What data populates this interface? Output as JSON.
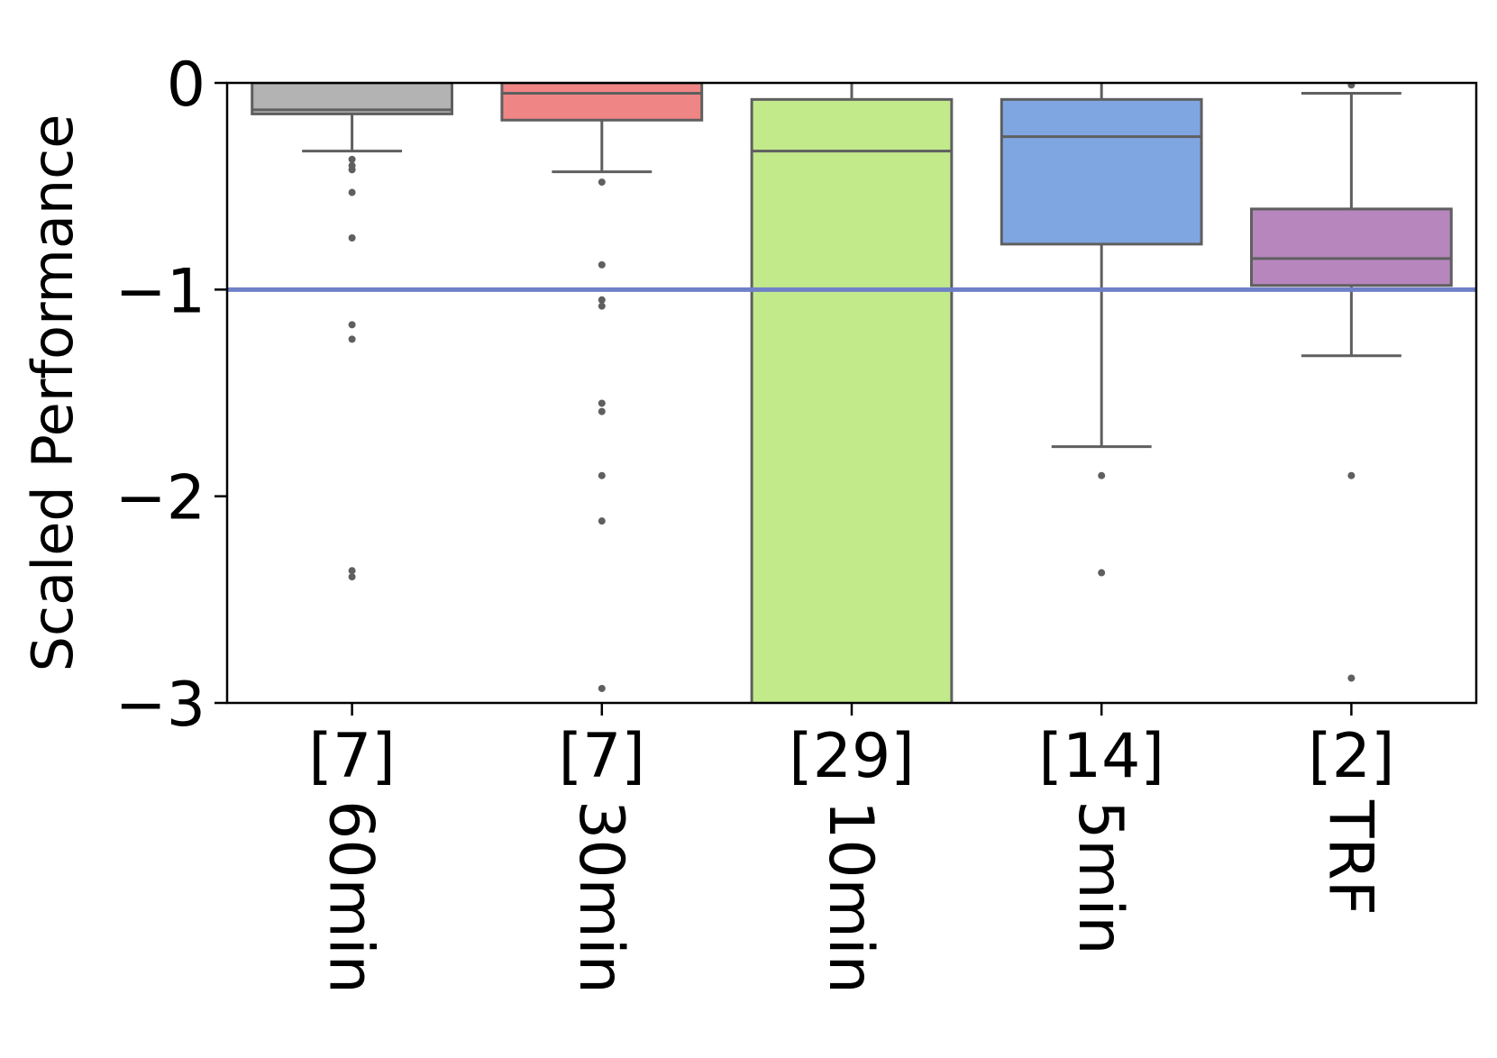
{
  "chart_data": {
    "type": "box",
    "ylabel": "Scaled Performance",
    "ylim": [
      -3,
      0
    ],
    "yticks": [
      0,
      -1,
      -2,
      -3
    ],
    "ytick_labels": [
      "0",
      "−1",
      "−2",
      "−3"
    ],
    "reference_line": {
      "y": -1,
      "color": "#6f80c8"
    },
    "grid": false,
    "categories": [
      {
        "count_label": "[7]",
        "name": "60min",
        "color": "#b3b3b3",
        "q1": -0.15,
        "median": -0.13,
        "q3": 0.0,
        "whisker_low": -0.33,
        "whisker_high": 0.0,
        "outliers": [
          -0.37,
          -0.4,
          -0.42,
          -0.53,
          -0.75,
          -1.17,
          -1.24,
          -2.36,
          -2.39
        ]
      },
      {
        "count_label": "[7]",
        "name": "30min",
        "color": "#f08585",
        "q1": -0.18,
        "median": -0.05,
        "q3": 0.0,
        "whisker_low": -0.43,
        "whisker_high": 0.0,
        "outliers": [
          -0.48,
          -0.88,
          -1.05,
          -1.08,
          -1.55,
          -1.59,
          -1.9,
          -2.12,
          -2.93
        ]
      },
      {
        "count_label": "[29]",
        "name": "10min",
        "color": "#c2ea8b",
        "q1": -3.2,
        "median": -0.33,
        "q3": -0.08,
        "whisker_low": -3.2,
        "whisker_high": 0.0,
        "outliers": []
      },
      {
        "count_label": "[14]",
        "name": "5min",
        "color": "#80a6e2",
        "q1": -0.78,
        "median": -0.26,
        "q3": -0.08,
        "whisker_low": -1.76,
        "whisker_high": 0.0,
        "outliers": [
          -1.9,
          -2.37
        ]
      },
      {
        "count_label": "[2]",
        "name": "TRF",
        "color": "#b686bd",
        "q1": -0.98,
        "median": -0.85,
        "q3": -0.61,
        "whisker_low": -1.32,
        "whisker_high": -0.05,
        "outliers": [
          -0.01,
          -1.9,
          -2.88
        ]
      }
    ]
  }
}
